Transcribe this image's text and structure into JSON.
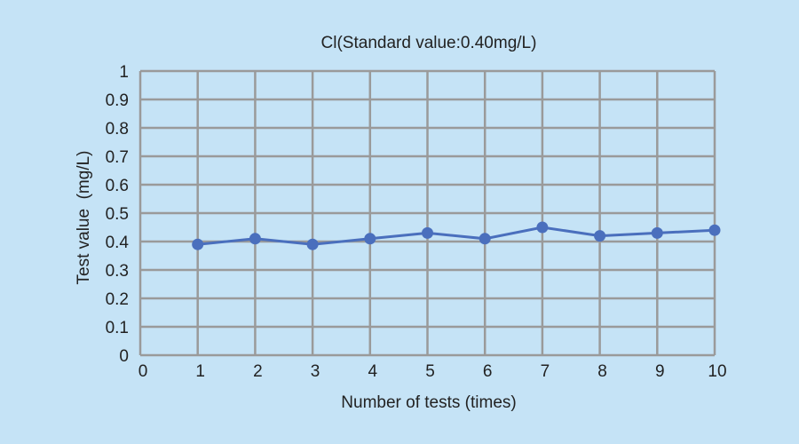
{
  "chart_data": {
    "type": "line",
    "title": "Cl(Standard value:0.40mg/L)",
    "xlabel": "Number of tests (times)",
    "ylabel": "Test value  (mg/L)",
    "x_ticks": [
      "0",
      "1",
      "2",
      "3",
      "4",
      "5",
      "6",
      "7",
      "8",
      "9",
      "10"
    ],
    "y_ticks": [
      "0",
      "0.1",
      "0.2",
      "0.3",
      "0.4",
      "0.5",
      "0.6",
      "0.7",
      "0.8",
      "0.9",
      "1"
    ],
    "xlim": [
      0,
      10
    ],
    "ylim": [
      0,
      1
    ],
    "grid": true,
    "series": [
      {
        "color": "#4a6fbd",
        "x": [
          1,
          2,
          3,
          4,
          5,
          6,
          7,
          8,
          9,
          10
        ],
        "values": [
          0.39,
          0.41,
          0.39,
          0.41,
          0.43,
          0.41,
          0.45,
          0.42,
          0.43,
          0.44
        ]
      }
    ]
  }
}
